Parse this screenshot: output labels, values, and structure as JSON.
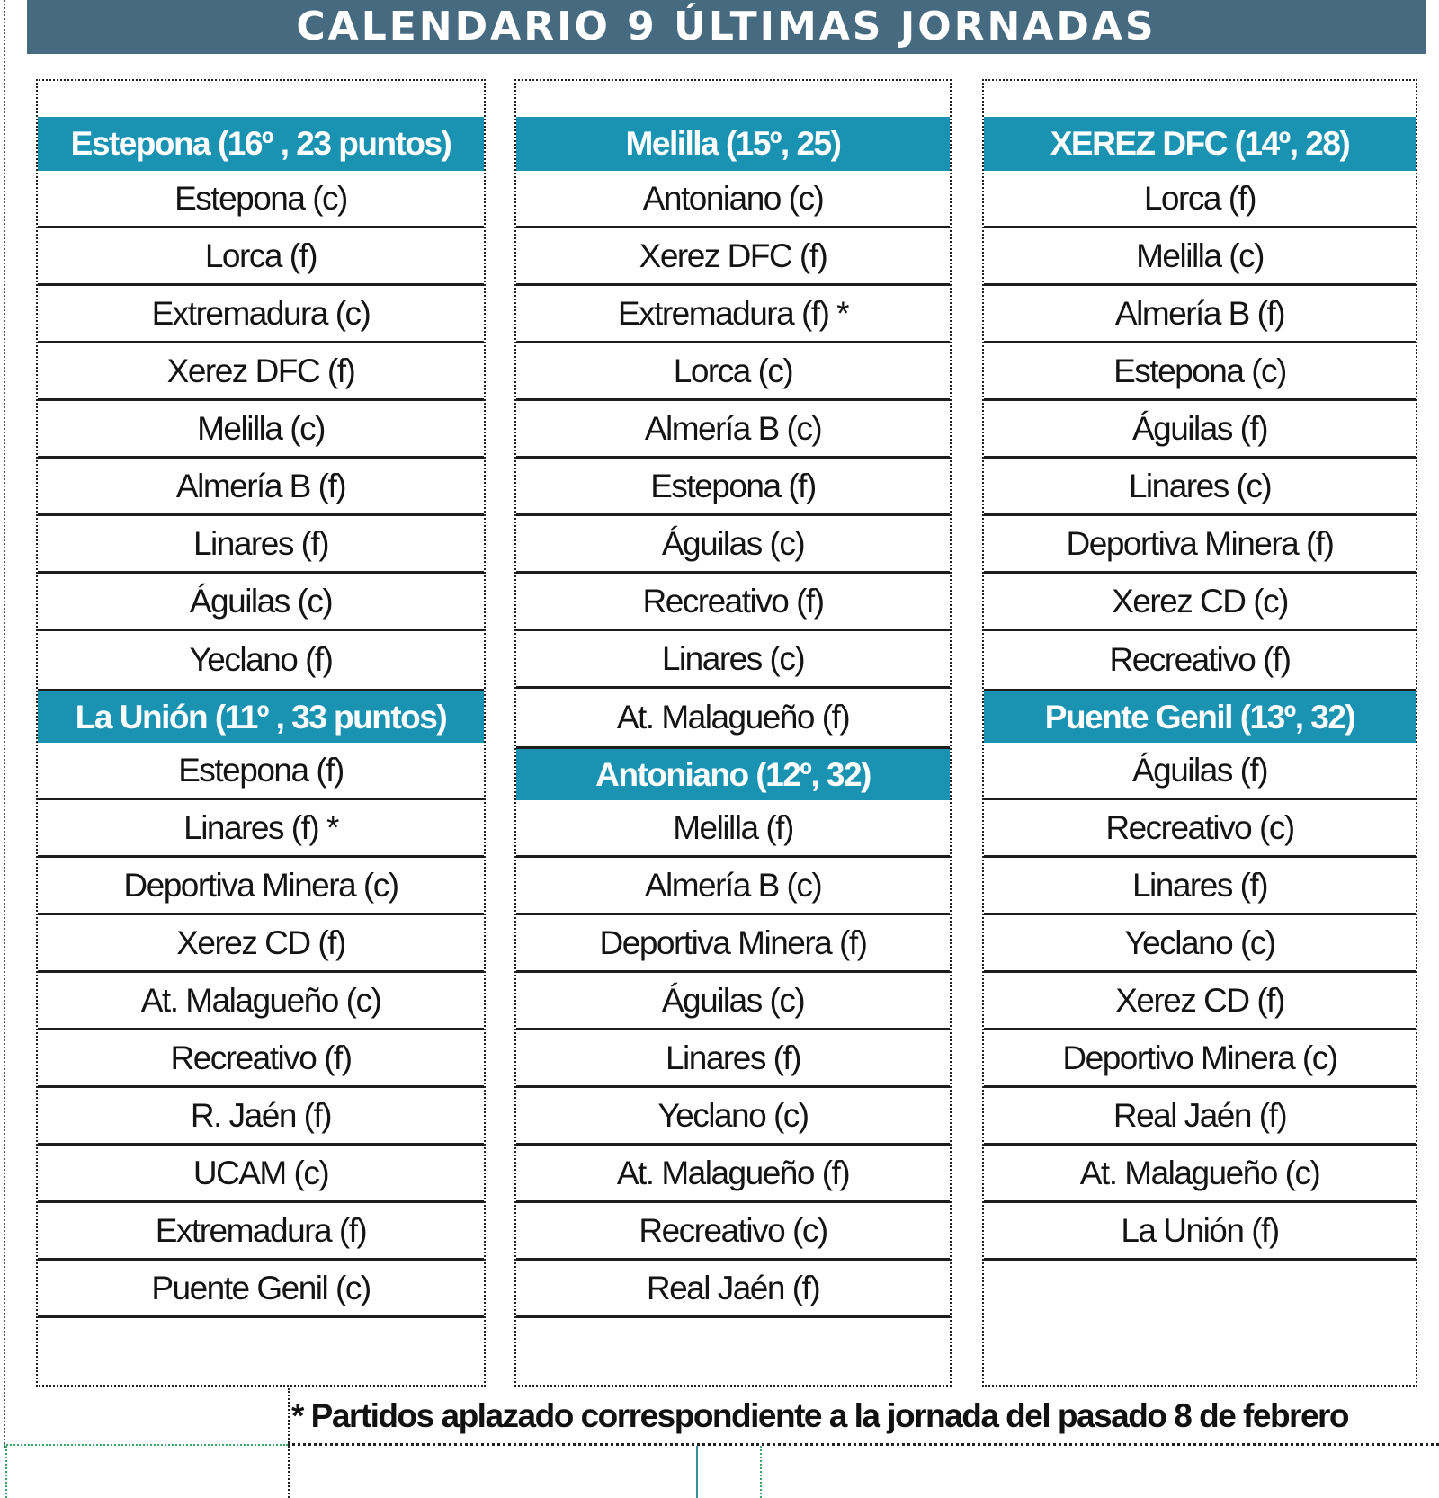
{
  "title": "CALENDARIO 9 ÚLTIMAS JORNADAS",
  "colors": {
    "title_bar": "#466b80",
    "team_header": "#1a93b3",
    "header_text": "#ffffff",
    "row_text": "#141414",
    "row_separator": "#1d1d1d"
  },
  "columns": [
    {
      "sections": [
        {
          "header": "Estepona (16º , 23 puntos)",
          "matches": [
            "Estepona (c)",
            "Lorca (f)",
            "Extremadura (c)",
            "Xerez DFC (f)",
            "Melilla (c)",
            "Almería B (f)",
            "Linares (f)",
            "Águilas (c)",
            "Yeclano (f)"
          ]
        },
        {
          "header": "La Unión (11º , 33 puntos)",
          "matches": [
            "Estepona (f)",
            "Linares (f) *",
            "Deportiva Minera (c)",
            "Xerez CD (f)",
            "At. Malagueño (c)",
            "Recreativo (f)",
            "R. Jaén (f)",
            "UCAM (c)",
            "Extremadura (f)",
            "Puente Genil (c)"
          ]
        }
      ]
    },
    {
      "sections": [
        {
          "header": "Melilla (15º, 25)",
          "matches": [
            "Antoniano (c)",
            "Xerez DFC (f)",
            "Extremadura (f) *",
            "Lorca (c)",
            "Almería B (c)",
            "Estepona (f)",
            "Águilas (c)",
            "Recreativo (f)",
            "Linares (c)",
            "At. Malagueño (f)"
          ]
        },
        {
          "header": "Antoniano (12º, 32)",
          "matches": [
            "Melilla (f)",
            "Almería B (c)",
            "Deportiva Minera (f)",
            "Águilas (c)",
            "Linares (f)",
            "Yeclano (c)",
            "At. Malagueño (f)",
            "Recreativo (c)",
            "Real Jaén (f)"
          ]
        }
      ]
    },
    {
      "sections": [
        {
          "header": "XEREZ DFC (14º, 28)",
          "matches": [
            "Lorca (f)",
            "Melilla (c)",
            "Almería B (f)",
            "Estepona (c)",
            "Águilas (f)",
            "Linares (c)",
            "Deportiva Minera (f)",
            "Xerez CD (c)",
            "Recreativo (f)"
          ]
        },
        {
          "header": "Puente Genil (13º, 32)",
          "matches": [
            "Águilas (f)",
            "Recreativo (c)",
            "Linares (f)",
            "Yeclano (c)",
            "Xerez CD (f)",
            "Deportivo Minera (c)",
            "Real Jaén (f)",
            "At. Malagueño (c)",
            "La Unión (f)"
          ]
        }
      ]
    }
  ],
  "footnote": "* Partidos aplazado correspondiente a la jornada del pasado 8 de febrero"
}
